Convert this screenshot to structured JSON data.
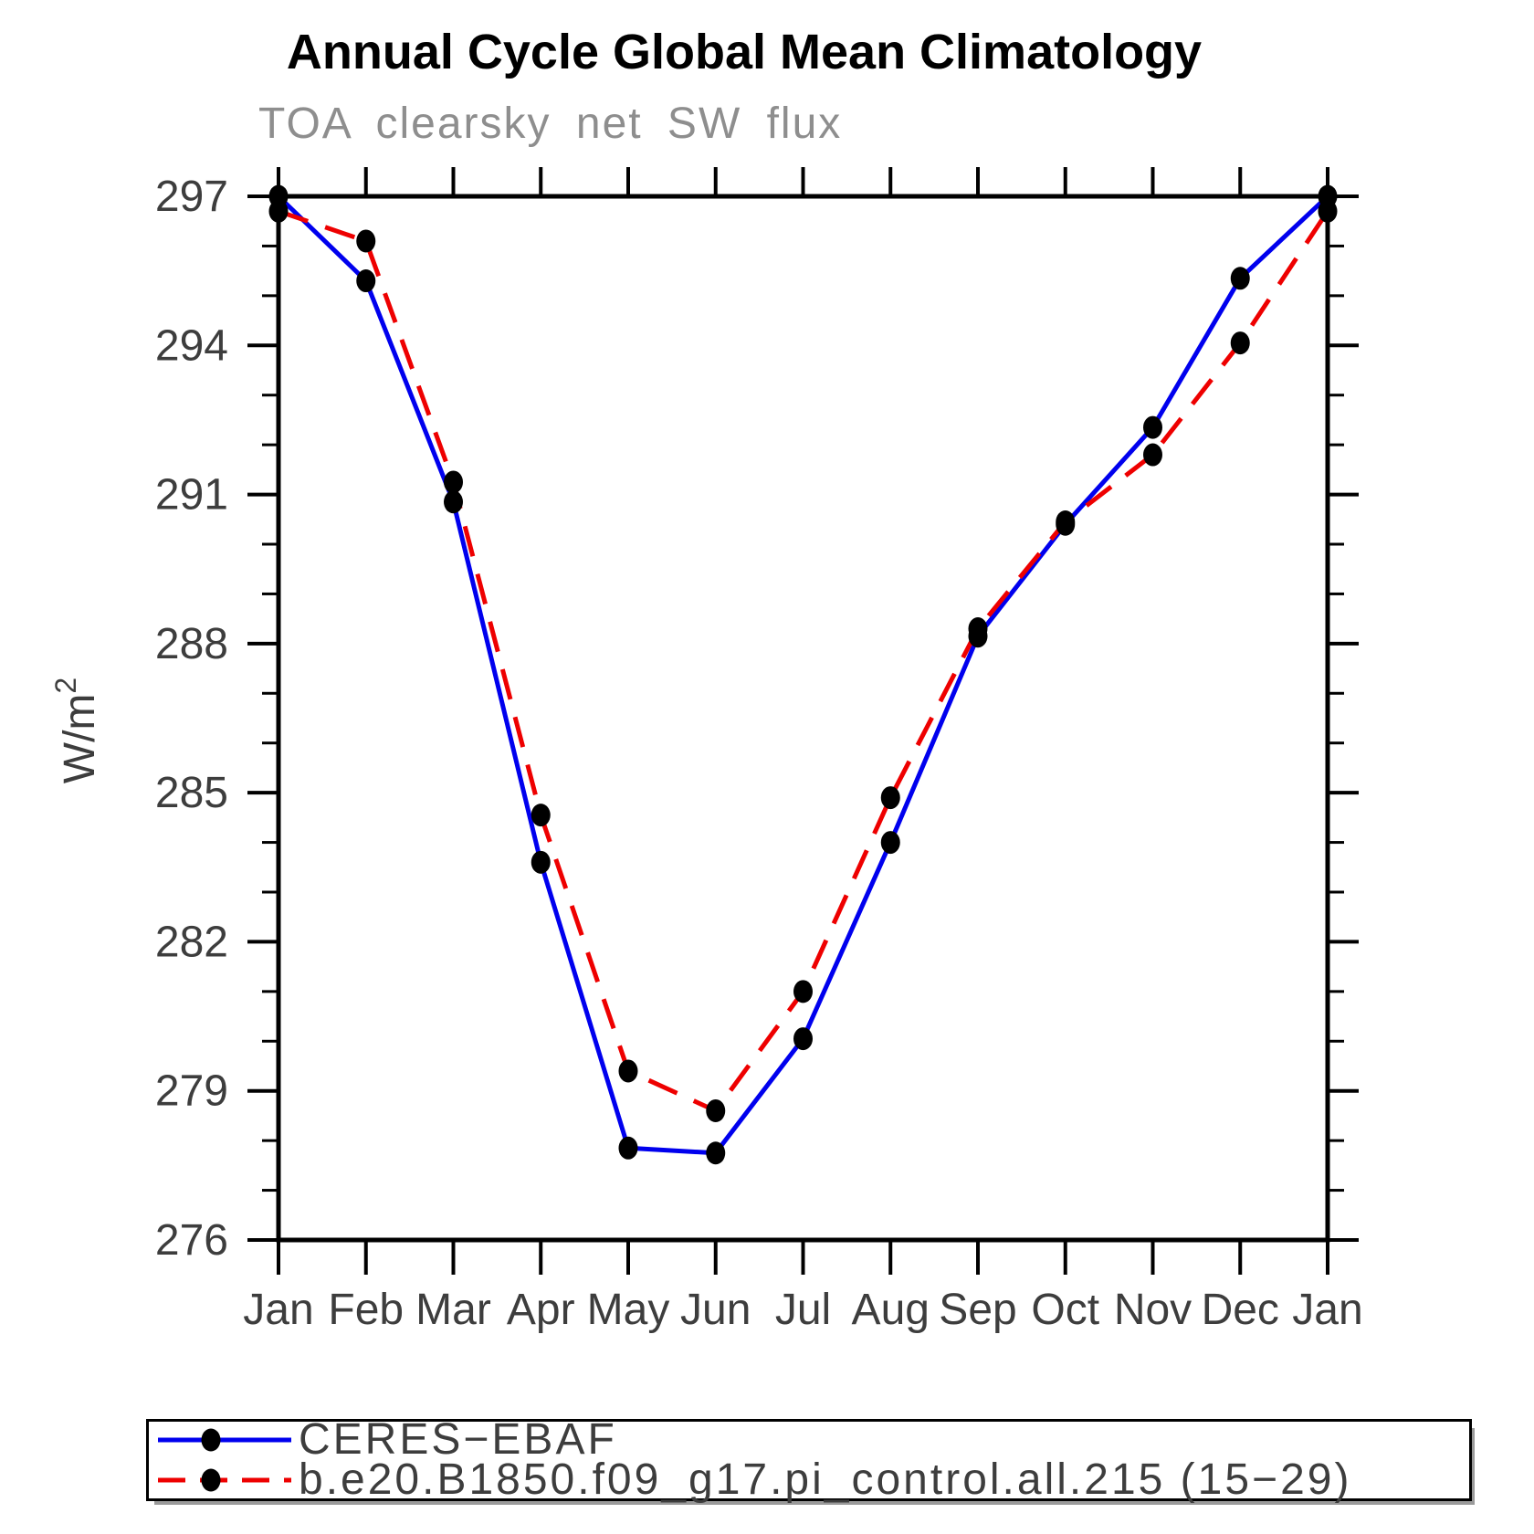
{
  "title": "Annual Cycle Global Mean Climatology",
  "subtitle": "TOA clearsky net SW flux",
  "y_axis_label": "W/m²",
  "colors": {
    "ceres_line": "#0000ee",
    "model_line": "#ee0000",
    "marker": "#000000",
    "axis": "#000000",
    "tick_text": "#3d3d3d",
    "subtitle_text": "#8e8e8e"
  },
  "legend": {
    "items": [
      {
        "label": "CERES−EBAF",
        "line_style": "solid",
        "color": "#0000ee",
        "marker": "black-dot"
      },
      {
        "label": "b.e20.B1850.f09_g17.pi_control.all.215 (15−29)",
        "line_style": "dashed",
        "color": "#ee0000",
        "marker": "black-dot"
      }
    ]
  },
  "chart_data": {
    "type": "line",
    "title": "Annual Cycle Global Mean Climatology",
    "subtitle": "TOA clearsky net SW flux",
    "xlabel": "",
    "ylabel": "W/m²",
    "categories": [
      "Jan",
      "Feb",
      "Mar",
      "Apr",
      "May",
      "Jun",
      "Jul",
      "Aug",
      "Sep",
      "Oct",
      "Nov",
      "Dec",
      "Jan"
    ],
    "series": [
      {
        "name": "CERES−EBAF",
        "color": "#0000ee",
        "dash": "solid",
        "marker": "black-dot",
        "values": [
          297.0,
          295.3,
          290.85,
          283.6,
          277.85,
          277.75,
          280.05,
          284.0,
          288.15,
          290.4,
          292.35,
          295.35,
          297.0
        ]
      },
      {
        "name": "b.e20.B1850.f09_g17.pi_control.all.215 (15−29)",
        "color": "#ee0000",
        "dash": "dashed",
        "marker": "black-dot",
        "values": [
          296.7,
          296.1,
          291.25,
          284.55,
          279.4,
          278.6,
          281.0,
          284.9,
          288.3,
          290.45,
          291.8,
          294.05,
          296.7
        ]
      }
    ],
    "ylim": [
      276,
      297
    ],
    "yticks_labeled": [
      276,
      279,
      282,
      285,
      288,
      291,
      294,
      297
    ],
    "ytick_minor_step": 1,
    "grid": false,
    "legend_position": "bottom"
  }
}
